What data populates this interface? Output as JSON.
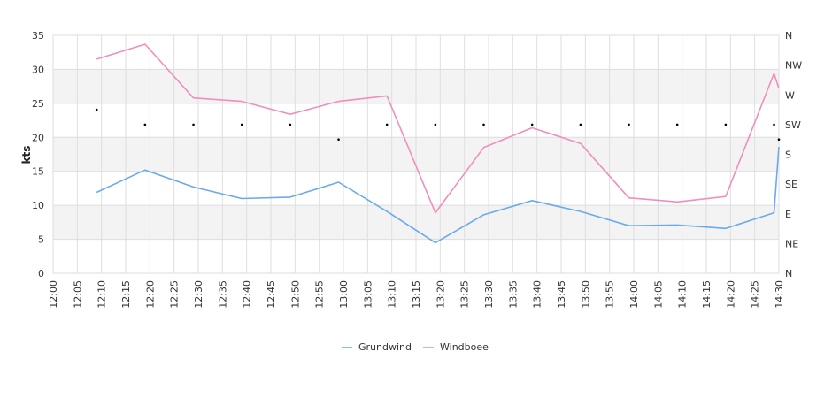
{
  "chart_data": {
    "type": "line",
    "xlabel": "",
    "ylabel": "kts",
    "ylim": [
      0,
      35
    ],
    "y_ticks": [
      0,
      5,
      10,
      15,
      20,
      25,
      30,
      35
    ],
    "x_tick_labels": [
      "12:00",
      "12:05",
      "12:10",
      "12:15",
      "12:20",
      "12:25",
      "12:30",
      "12:35",
      "12:40",
      "12:45",
      "12:50",
      "12:55",
      "13:00",
      "13:05",
      "13:10",
      "13:15",
      "13:20",
      "13:25",
      "13:30",
      "13:35",
      "13:40",
      "13:45",
      "13:50",
      "13:55",
      "14:00",
      "14:05",
      "14:10",
      "14:15",
      "14:20",
      "14:25",
      "14:30"
    ],
    "right_axis_labels": [
      "N",
      "NE",
      "E",
      "SE",
      "S",
      "SW",
      "W",
      "NW",
      "N"
    ],
    "right_axis_range_deg": [
      0,
      360
    ],
    "x": [
      "12:09",
      "12:19",
      "12:29",
      "12:39",
      "12:49",
      "12:59",
      "13:09",
      "13:19",
      "13:29",
      "13:39",
      "13:49",
      "13:59",
      "14:09",
      "14:19",
      "14:29"
    ],
    "series": [
      {
        "name": "Grundwind",
        "color": "#6aaaea",
        "values": [
          11.9,
          15.2,
          12.7,
          11.0,
          11.2,
          13.4,
          9.1,
          4.5,
          8.6,
          10.7,
          9.1,
          7.0,
          7.1,
          6.6,
          8.9
        ]
      },
      {
        "name": "Windboee",
        "color": "#ef8fbd",
        "values": [
          31.5,
          33.7,
          25.8,
          25.3,
          23.4,
          25.3,
          26.1,
          8.9,
          18.5,
          21.4,
          19.1,
          11.1,
          10.5,
          11.3,
          29.4
        ]
      },
      {
        "name": "",
        "type": "scatter",
        "axis": "right",
        "values": [
          247.5,
          225,
          225,
          225,
          225,
          202.5,
          225,
          225,
          225,
          225,
          225,
          225,
          225,
          225,
          225
        ]
      }
    ],
    "extra_end_point": {
      "x": "14:30",
      "Grundwind": 18.6,
      "Windboee": 27.2,
      "direction": 202.5
    },
    "grid": true,
    "alternating_bands": true,
    "legend_position": "bottom-center"
  }
}
